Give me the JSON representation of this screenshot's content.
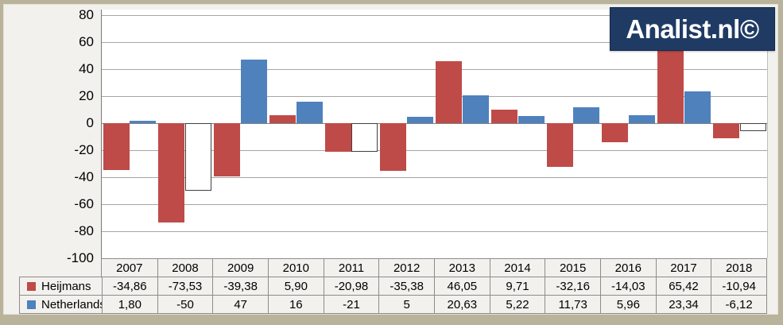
{
  "logo": {
    "text": "Analist.nl©",
    "bg_color": "#1f3b64",
    "text_color": "#ffffff"
  },
  "colors": {
    "heijmans": "#be4b48",
    "netherlands": "#4f81bd",
    "negative_invert_fill": "#ffffff",
    "gridline": "#a6a6a6",
    "figure_bg": "#f2f1ed",
    "plot_bg": "#ffffff",
    "frame": "#b9b39c",
    "table_border": "#8c8c8c"
  },
  "chart_data": {
    "type": "bar",
    "title": "",
    "xlabel": "",
    "ylabel": "",
    "categories": [
      "2007",
      "2008",
      "2009",
      "2010",
      "2011",
      "2012",
      "2013",
      "2014",
      "2015",
      "2016",
      "2017",
      "2018"
    ],
    "series": [
      {
        "name": "Heijmans",
        "color_key": "heijmans",
        "values": [
          -34.86,
          -73.53,
          -39.38,
          5.9,
          -20.98,
          -35.38,
          46.05,
          9.71,
          -32.16,
          -14.03,
          65.42,
          -10.94
        ],
        "invert_if_negative": false
      },
      {
        "name": "Netherlands",
        "color_key": "netherlands",
        "values": [
          1.8,
          -50,
          47,
          16,
          -21,
          5,
          20.63,
          5.22,
          11.73,
          5.96,
          23.34,
          -6.12
        ],
        "invert_if_negative": true
      }
    ],
    "ylim": [
      -100,
      80
    ],
    "ytick_step": 20,
    "ytick_labels": [
      "80",
      "60",
      "40",
      "20",
      "0",
      "-20",
      "-40",
      "-60",
      "-80",
      "-100"
    ],
    "grid": true,
    "legend_position": "table-left"
  },
  "table": {
    "year_headers": [
      "2007",
      "2008",
      "2009",
      "2010",
      "2011",
      "2012",
      "2013",
      "2014",
      "2015",
      "2016",
      "2017",
      "2018"
    ],
    "rows": [
      {
        "legend": "Heijmans",
        "values": [
          "-34,86",
          "-73,53",
          "-39,38",
          "5,90",
          "-20,98",
          "-35,38",
          "46,05",
          "9,71",
          "-32,16",
          "-14,03",
          "65,42",
          "-10,94"
        ]
      },
      {
        "legend": "Netherlands",
        "values": [
          "1,80",
          "-50",
          "47",
          "16",
          "-21",
          "5",
          "20,63",
          "5,22",
          "11,73",
          "5,96",
          "23,34",
          "-6,12"
        ]
      }
    ]
  }
}
